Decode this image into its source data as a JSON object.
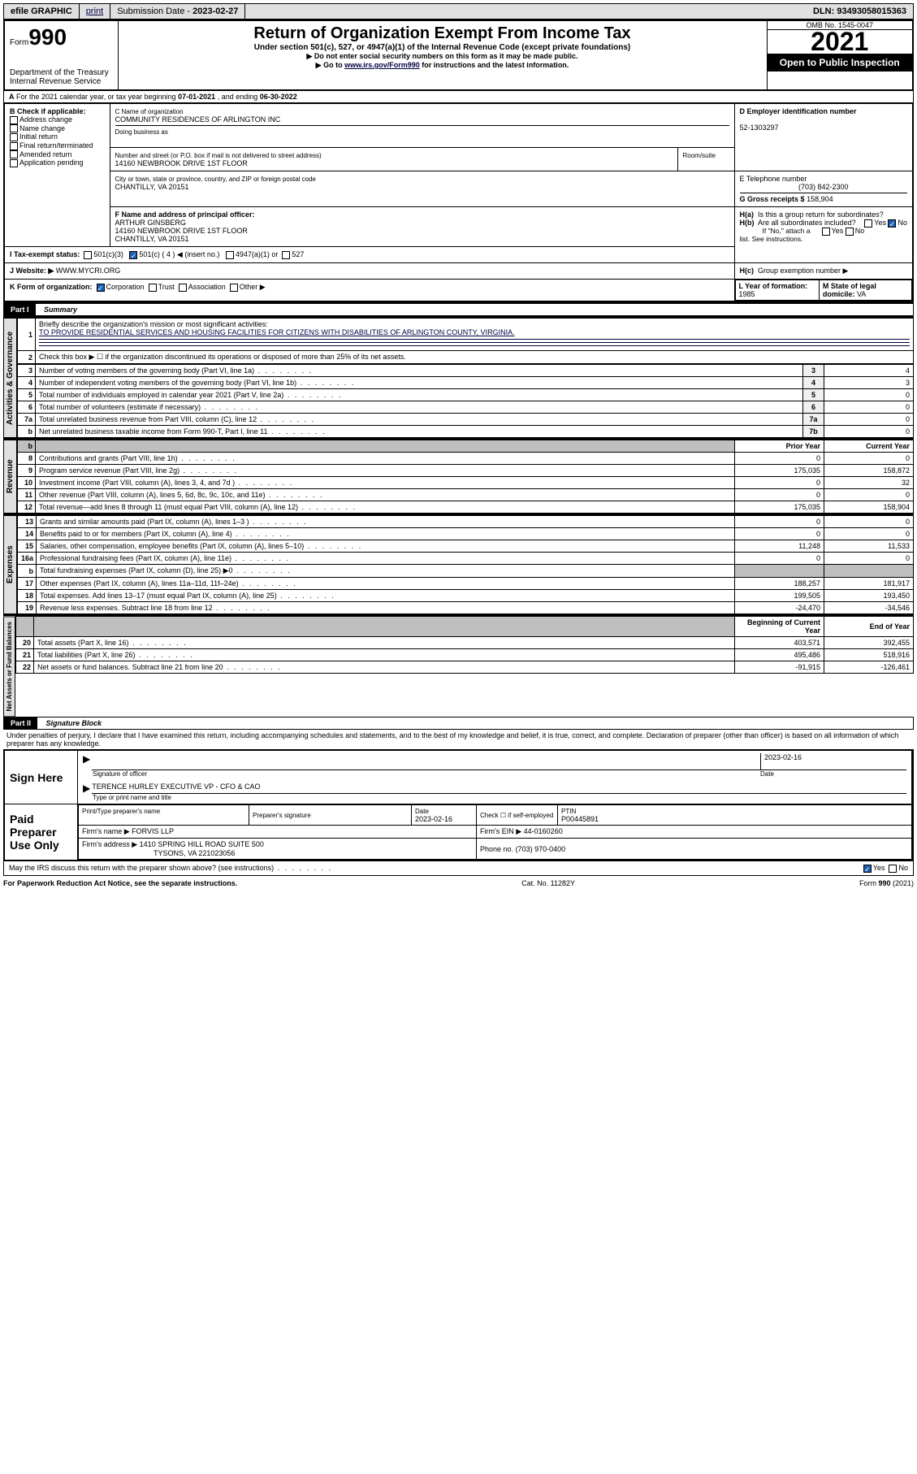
{
  "topbar": {
    "efile": "efile GRAPHIC",
    "print": "print",
    "submission_label": "Submission Date -",
    "submission_date": "2023-02-27",
    "dln_label": "DLN:",
    "dln": "93493058015363"
  },
  "header": {
    "form_prefix": "Form",
    "form_no": "990",
    "dept": "Department of the Treasury",
    "irs": "Internal Revenue Service",
    "title": "Return of Organization Exempt From Income Tax",
    "subtitle": "Under section 501(c), 527, or 4947(a)(1) of the Internal Revenue Code (except private foundations)",
    "warn": "▶ Do not enter social security numbers on this form as it may be made public.",
    "goto_pre": "▶ Go to ",
    "goto_link": "www.irs.gov/Form990",
    "goto_post": " for instructions and the latest information.",
    "omb": "OMB No. 1545-0047",
    "year": "2021",
    "open": "Open to Public Inspection"
  },
  "lineA": {
    "text_pre": "For the 2021 calendar year, or tax year beginning ",
    "begin": "07-01-2021",
    "mid": " , and ending ",
    "end": "06-30-2022"
  },
  "boxB": {
    "label": "B Check if applicable:",
    "items": [
      "Address change",
      "Name change",
      "Initial return",
      "Final return/terminated",
      "Amended return",
      "Application pending"
    ]
  },
  "boxC": {
    "name_label": "C Name of organization",
    "name": "COMMUNITY RESIDENCES OF ARLINGTON INC",
    "dba_label": "Doing business as",
    "dba": "",
    "street_label": "Number and street (or P.O. box if mail is not delivered to street address)",
    "room_label": "Room/suite",
    "street": "14160 NEWBROOK DRIVE 1ST FLOOR",
    "city_label": "City or town, state or province, country, and ZIP or foreign postal code",
    "city": "CHANTILLY, VA  20151"
  },
  "boxD": {
    "label": "D Employer identification number",
    "value": "52-1303297"
  },
  "boxE": {
    "label": "E Telephone number",
    "value": "(703) 842-2300"
  },
  "boxG": {
    "label": "G Gross receipts $",
    "value": "158,904"
  },
  "boxF": {
    "label": "F Name and address of principal officer:",
    "name": "ARTHUR GINSBERG",
    "addr1": "14160 NEWBROOK DRIVE 1ST FLOOR",
    "addr2": "CHANTILLY, VA  20151"
  },
  "boxH": {
    "a_label": "H(a)  Is this a group return for subordinates?",
    "b_label": "H(b)  Are all subordinates included?",
    "b_note": "If \"No,\" attach a list. See instructions.",
    "c_label": "H(c)  Group exemption number ▶",
    "yes": "Yes",
    "no": "No"
  },
  "boxI": {
    "label": "I  Tax-exempt status:",
    "c3": "501(c)(3)",
    "c4_pre": "501(c) ( 4 ) ◀ (insert no.)",
    "a1": "4947(a)(1) or",
    "s527": "527"
  },
  "boxJ": {
    "label": "J  Website: ▶",
    "value": "WWW.MYCRI.ORG"
  },
  "boxK": {
    "label": "K Form of organization:",
    "corp": "Corporation",
    "trust": "Trust",
    "assoc": "Association",
    "other": "Other ▶"
  },
  "boxL": {
    "label": "L Year of formation:",
    "value": "1985"
  },
  "boxM": {
    "label": "M State of legal domicile:",
    "value": "VA"
  },
  "part1": {
    "header": "Part I",
    "title": "Summary",
    "line1_label": "Briefly describe the organization's mission or most significant activities:",
    "line1_text": "TO PROVIDE RESIDENTIAL SERVICES AND HOUSING FACILITIES FOR CITIZENS WITH DISABILITIES OF ARLINGTON COUNTY, VIRGINIA.",
    "line2": "Check this box ▶ ☐ if the organization discontinued its operations or disposed of more than 25% of its net assets.",
    "tabs": {
      "gov": "Activities & Governance",
      "rev": "Revenue",
      "exp": "Expenses",
      "net": "Net Assets or Fund Balances"
    },
    "cols": {
      "prior": "Prior Year",
      "current": "Current Year",
      "begin": "Beginning of Current Year",
      "end": "End of Year"
    },
    "gov_rows": [
      {
        "n": "3",
        "desc": "Number of voting members of the governing body (Part VI, line 1a)",
        "box": "3",
        "val": "4"
      },
      {
        "n": "4",
        "desc": "Number of independent voting members of the governing body (Part VI, line 1b)",
        "box": "4",
        "val": "3"
      },
      {
        "n": "5",
        "desc": "Total number of individuals employed in calendar year 2021 (Part V, line 2a)",
        "box": "5",
        "val": "0"
      },
      {
        "n": "6",
        "desc": "Total number of volunteers (estimate if necessary)",
        "box": "6",
        "val": "0"
      },
      {
        "n": "7a",
        "desc": "Total unrelated business revenue from Part VIII, column (C), line 12",
        "box": "7a",
        "val": "0"
      },
      {
        "n": "b",
        "desc": "Net unrelated business taxable income from Form 990-T, Part I, line 11",
        "box": "7b",
        "val": "0"
      }
    ],
    "rev_rows": [
      {
        "n": "8",
        "desc": "Contributions and grants (Part VIII, line 1h)",
        "p": "0",
        "c": "0"
      },
      {
        "n": "9",
        "desc": "Program service revenue (Part VIII, line 2g)",
        "p": "175,035",
        "c": "158,872"
      },
      {
        "n": "10",
        "desc": "Investment income (Part VIII, column (A), lines 3, 4, and 7d )",
        "p": "0",
        "c": "32"
      },
      {
        "n": "11",
        "desc": "Other revenue (Part VIII, column (A), lines 5, 6d, 8c, 9c, 10c, and 11e)",
        "p": "0",
        "c": "0"
      },
      {
        "n": "12",
        "desc": "Total revenue—add lines 8 through 11 (must equal Part VIII, column (A), line 12)",
        "p": "175,035",
        "c": "158,904"
      }
    ],
    "exp_rows": [
      {
        "n": "13",
        "desc": "Grants and similar amounts paid (Part IX, column (A), lines 1–3 )",
        "p": "0",
        "c": "0"
      },
      {
        "n": "14",
        "desc": "Benefits paid to or for members (Part IX, column (A), line 4)",
        "p": "0",
        "c": "0"
      },
      {
        "n": "15",
        "desc": "Salaries, other compensation, employee benefits (Part IX, column (A), lines 5–10)",
        "p": "11,248",
        "c": "11,533"
      },
      {
        "n": "16a",
        "desc": "Professional fundraising fees (Part IX, column (A), line 11e)",
        "p": "0",
        "c": "0"
      },
      {
        "n": "b",
        "desc": "Total fundraising expenses (Part IX, column (D), line 25) ▶0",
        "p": "",
        "c": "",
        "shaded": true
      },
      {
        "n": "17",
        "desc": "Other expenses (Part IX, column (A), lines 11a–11d, 11f–24e)",
        "p": "188,257",
        "c": "181,917"
      },
      {
        "n": "18",
        "desc": "Total expenses. Add lines 13–17 (must equal Part IX, column (A), line 25)",
        "p": "199,505",
        "c": "193,450"
      },
      {
        "n": "19",
        "desc": "Revenue less expenses. Subtract line 18 from line 12",
        "p": "-24,470",
        "c": "-34,546"
      }
    ],
    "net_rows": [
      {
        "n": "20",
        "desc": "Total assets (Part X, line 16)",
        "p": "403,571",
        "c": "392,455"
      },
      {
        "n": "21",
        "desc": "Total liabilities (Part X, line 26)",
        "p": "495,486",
        "c": "518,916"
      },
      {
        "n": "22",
        "desc": "Net assets or fund balances. Subtract line 21 from line 20",
        "p": "-91,915",
        "c": "-126,461"
      }
    ]
  },
  "part2": {
    "header": "Part II",
    "title": "Signature Block",
    "perjury": "Under penalties of perjury, I declare that I have examined this return, including accompanying schedules and statements, and to the best of my knowledge and belief, it is true, correct, and complete. Declaration of preparer (other than officer) is based on all information of which preparer has any knowledge.",
    "sign_here": "Sign Here",
    "sig_officer": "Signature of officer",
    "sig_date": "2023-02-16",
    "date_label": "Date",
    "officer_name": "TERENCE HURLEY EXECUTIVE VP - CFO & CAO",
    "officer_label": "Type or print name and title",
    "paid": "Paid Preparer Use Only",
    "prep_name_label": "Print/Type preparer's name",
    "prep_sig_label": "Preparer's signature",
    "prep_date_label": "Date",
    "prep_date": "2023-02-16",
    "check_if": "Check ☐ if self-employed",
    "ptin_label": "PTIN",
    "ptin": "P00445891",
    "firm_name_label": "Firm's name    ▶",
    "firm_name": "FORVIS LLP",
    "firm_ein_label": "Firm's EIN ▶",
    "firm_ein": "44-0160260",
    "firm_addr_label": "Firm's address ▶",
    "firm_addr1": "1410 SPRING HILL ROAD SUITE 500",
    "firm_addr2": "TYSONS, VA  221023056",
    "firm_phone_label": "Phone no.",
    "firm_phone": "(703) 970-0400",
    "discuss": "May the IRS discuss this return with the preparer shown above? (see instructions)",
    "yes": "Yes",
    "no": "No"
  },
  "footer": {
    "left": "For Paperwork Reduction Act Notice, see the separate instructions.",
    "mid": "Cat. No. 11282Y",
    "right_pre": "Form ",
    "right_b": "990",
    "right_post": " (2021)"
  }
}
